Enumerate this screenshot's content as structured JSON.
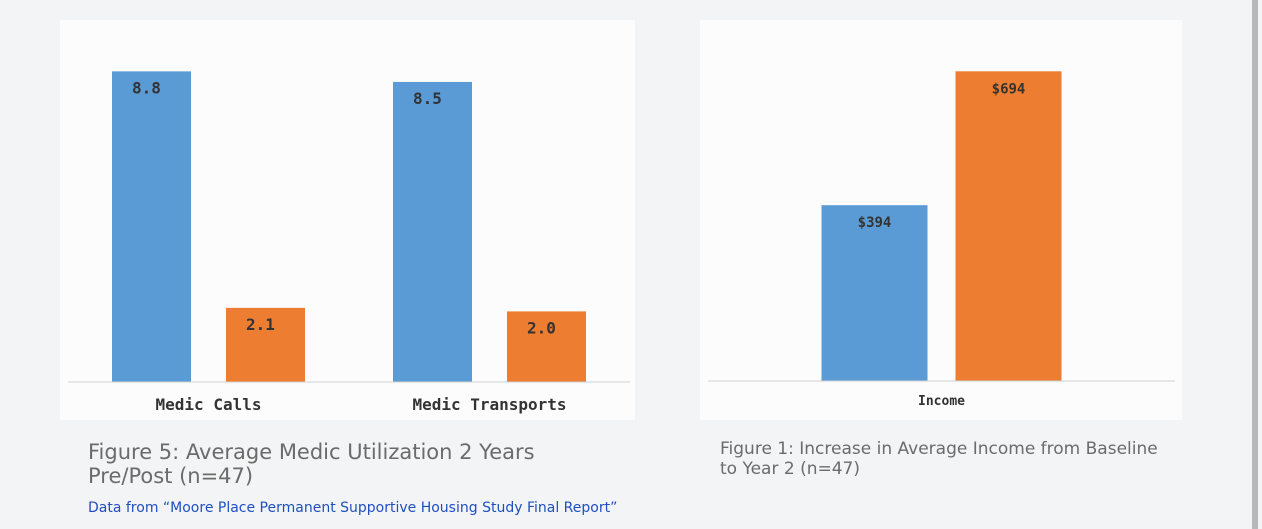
{
  "chart_data": [
    {
      "type": "bar",
      "title": "Figure 5: Average Medic Utilization 2 Years Pre/Post (n=47)",
      "categories": [
        "Medic Calls",
        "Medic Transports"
      ],
      "series": [
        {
          "color": "#5b9bd5",
          "values": [
            8.8,
            8.5
          ]
        },
        {
          "color": "#ed7d31",
          "values": [
            2.1,
            2.0
          ],
          "value_labels": [
            "2.1",
            "2.0"
          ]
        }
      ],
      "ylim": [
        0,
        10
      ]
    },
    {
      "type": "bar",
      "title": "Figure 1: Increase in Average Income from Baseline to Year 2 (n=47)",
      "categories": [
        "Income"
      ],
      "series": [
        {
          "color": "#5b9bd5",
          "values": [
            394
          ],
          "value_labels": [
            "$394"
          ]
        },
        {
          "color": "#ed7d31",
          "values": [
            694
          ],
          "value_labels": [
            "$694"
          ]
        }
      ],
      "ylim": [
        0,
        800
      ]
    }
  ],
  "source": "Data from “Moore Place Permanent Supportive Housing Study Final Report”"
}
